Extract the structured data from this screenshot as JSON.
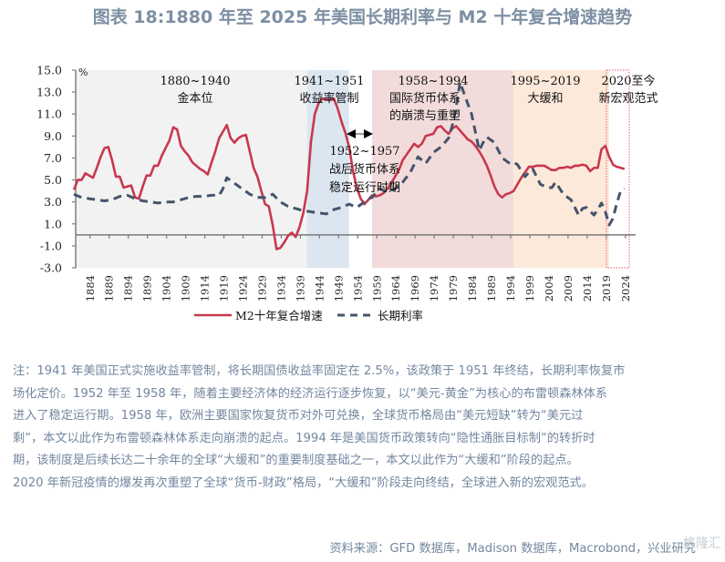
{
  "title": "图表 18:1880 年至 2025 年美国长期利率与 M2 十年复合增速趋势",
  "chart_data": {
    "type": "line",
    "title": "图表 18:1880 年至 2025 年美国长期利率与 M2 十年复合增速趋势",
    "ylabel": "%",
    "ylim": [
      -3.0,
      15.0
    ],
    "yticks": [
      "15.0",
      "13.0",
      "11.0",
      "9.0",
      "7.0",
      "5.0",
      "3.0",
      "1.0",
      "-1.0",
      "-3.0"
    ],
    "ytick_values": [
      15,
      13,
      11,
      9,
      7,
      5,
      3,
      1,
      -1,
      -3
    ],
    "xlim": [
      1880,
      2025
    ],
    "xticks": [
      "1884",
      "1889",
      "1894",
      "1899",
      "1904",
      "1909",
      "1914",
      "1919",
      "1924",
      "1929",
      "1934",
      "1939",
      "1944",
      "1949",
      "1954",
      "1959",
      "1964",
      "1969",
      "1974",
      "1979",
      "1984",
      "1989",
      "1994",
      "1999",
      "2004",
      "2009",
      "2014",
      "2019",
      "2024"
    ],
    "legend_position": "bottom",
    "grid": false,
    "series": [
      {
        "name": "M2十年复合增速",
        "color": "#c8384e",
        "style": "solid",
        "x": [
          1880,
          1881,
          1882,
          1883,
          1884,
          1885,
          1886,
          1887,
          1888,
          1889,
          1890,
          1891,
          1892,
          1893,
          1894,
          1895,
          1896,
          1897,
          1898,
          1899,
          1900,
          1901,
          1902,
          1903,
          1904,
          1905,
          1906,
          1907,
          1908,
          1909,
          1910,
          1911,
          1912,
          1913,
          1914,
          1915,
          1916,
          1917,
          1918,
          1919,
          1920,
          1921,
          1922,
          1923,
          1924,
          1925,
          1926,
          1927,
          1928,
          1929,
          1930,
          1931,
          1932,
          1933,
          1934,
          1935,
          1936,
          1937,
          1938,
          1939,
          1940,
          1941,
          1942,
          1943,
          1944,
          1945,
          1946,
          1947,
          1948,
          1949,
          1950,
          1951,
          1952,
          1953,
          1954,
          1955,
          1956,
          1957,
          1958,
          1959,
          1960,
          1961,
          1962,
          1963,
          1964,
          1965,
          1966,
          1967,
          1968,
          1969,
          1970,
          1971,
          1972,
          1973,
          1974,
          1975,
          1976,
          1977,
          1978,
          1979,
          1980,
          1981,
          1982,
          1983,
          1984,
          1985,
          1986,
          1987,
          1988,
          1989,
          1990,
          1991,
          1992,
          1993,
          1994,
          1995,
          1996,
          1997,
          1998,
          1999,
          2000,
          2001,
          2002,
          2003,
          2004,
          2005,
          2006,
          2007,
          2008,
          2009,
          2010,
          2011,
          2012,
          2013,
          2014,
          2015,
          2016,
          2017,
          2018,
          2019,
          2020,
          2021,
          2022,
          2023,
          2024
        ],
        "values": [
          4.1,
          5.0,
          5.0,
          5.6,
          5.4,
          5.2,
          6.1,
          7.1,
          7.9,
          8.0,
          6.8,
          5.3,
          5.3,
          4.3,
          4.4,
          4.5,
          3.4,
          3.3,
          4.4,
          5.4,
          5.4,
          6.3,
          6.3,
          7.2,
          7.9,
          8.6,
          9.8,
          9.6,
          8.1,
          7.6,
          7.2,
          6.6,
          6.3,
          6.0,
          5.8,
          5.5,
          6.6,
          7.6,
          8.8,
          9.4,
          10.0,
          8.8,
          8.4,
          8.8,
          9.0,
          9.1,
          7.6,
          6.1,
          5.3,
          4.0,
          2.8,
          2.6,
          0.9,
          -1.3,
          -1.2,
          -0.7,
          -0.1,
          0.2,
          -0.2,
          0.7,
          2.0,
          4.0,
          8.5,
          11.0,
          12.0,
          12.4,
          12.3,
          12.3,
          12.4,
          11.5,
          10.3,
          9.3,
          8.0,
          5.8,
          4.3,
          3.3,
          2.8,
          3.2,
          3.6,
          3.5,
          3.6,
          3.8,
          4.2,
          4.7,
          5.3,
          5.9,
          6.8,
          7.3,
          7.8,
          8.3,
          8.0,
          8.3,
          9.0,
          9.1,
          9.2,
          9.8,
          9.9,
          9.5,
          9.2,
          9.7,
          9.9,
          9.5,
          9.1,
          8.7,
          8.5,
          8.1,
          7.6,
          7.0,
          6.3,
          5.4,
          4.4,
          3.7,
          3.4,
          3.7,
          3.8,
          4.0,
          4.6,
          5.2,
          5.7,
          6.2,
          6.2,
          6.3,
          6.3,
          6.3,
          6.1,
          5.9,
          5.9,
          6.1,
          6.1,
          6.2,
          6.1,
          6.3,
          6.3,
          6.4,
          6.3,
          5.8,
          6.1,
          6.1,
          7.8,
          8.1,
          7.1,
          6.4,
          6.2,
          6.1,
          6.0
        ]
      },
      {
        "name": "长期利率",
        "color": "#44546a",
        "style": "dashed",
        "x": [
          1880,
          1882,
          1884,
          1886,
          1888,
          1890,
          1892,
          1894,
          1896,
          1898,
          1900,
          1902,
          1904,
          1906,
          1908,
          1910,
          1912,
          1914,
          1916,
          1918,
          1919,
          1920,
          1922,
          1924,
          1926,
          1928,
          1930,
          1932,
          1934,
          1936,
          1938,
          1940,
          1942,
          1944,
          1946,
          1948,
          1950,
          1952,
          1954,
          1956,
          1957,
          1958,
          1960,
          1962,
          1964,
          1966,
          1968,
          1970,
          1972,
          1974,
          1976,
          1978,
          1979,
          1980,
          1981,
          1982,
          1984,
          1986,
          1987,
          1988,
          1990,
          1992,
          1994,
          1995,
          1996,
          1998,
          1999,
          2000,
          2002,
          2004,
          2005,
          2006,
          2008,
          2010,
          2012,
          2013,
          2014,
          2016,
          2017,
          2018,
          2019,
          2020,
          2021,
          2022,
          2023,
          2024
        ],
        "values": [
          3.7,
          3.4,
          3.3,
          3.2,
          3.1,
          3.2,
          3.5,
          3.6,
          3.3,
          3.1,
          3.0,
          2.9,
          3.0,
          3.0,
          3.2,
          3.4,
          3.5,
          3.5,
          3.6,
          3.6,
          4.2,
          5.2,
          4.7,
          4.2,
          3.7,
          3.4,
          3.4,
          3.7,
          3.0,
          2.6,
          2.4,
          2.2,
          2.1,
          2.0,
          1.9,
          2.3,
          2.5,
          2.8,
          2.5,
          3.0,
          3.3,
          3.4,
          4.2,
          3.9,
          4.2,
          4.8,
          5.7,
          7.1,
          6.5,
          7.5,
          8.0,
          8.8,
          10.0,
          11.7,
          13.9,
          12.9,
          11.0,
          7.7,
          8.4,
          8.9,
          8.4,
          7.0,
          6.5,
          6.6,
          6.4,
          5.3,
          5.7,
          6.0,
          4.6,
          4.3,
          4.3,
          4.8,
          3.7,
          3.2,
          1.8,
          2.4,
          2.5,
          1.8,
          2.3,
          2.9,
          2.1,
          0.9,
          1.5,
          2.9,
          4.0,
          4.2
        ]
      }
    ],
    "periods": [
      {
        "start": 1880,
        "end": 1940,
        "label1": "1880~1940",
        "label2": "金本位",
        "color": "#f2f2f2"
      },
      {
        "start": 1941,
        "end": 1951,
        "label1": "1941~1951",
        "label2": "收益率管制",
        "color": "#dce6f1"
      },
      {
        "start": 1952,
        "end": 1957,
        "label1": "1952~1957",
        "label2": "战后货币体系",
        "label3": "稳定运行时期",
        "color": "#ffffff"
      },
      {
        "start": 1958,
        "end": 1994,
        "label1": "1958~1994",
        "label2": "国际货币体系",
        "label3": "的崩溃与重塑",
        "color": "#f2dcdb"
      },
      {
        "start": 1995,
        "end": 2019,
        "label1": "1995~2019",
        "label2": "大缓和",
        "color": "#fde9d9"
      },
      {
        "start": 2020,
        "end": 2025,
        "label1": "2020至今",
        "label2": "新宏观范式",
        "color": "#ffffff"
      }
    ]
  },
  "note": {
    "lines": [
      "注：1941 年美国正式实施收益率管制，将长期国债收益率固定在 2.5%，该政策于 1951 年终结，长期利率恢复市",
      "场化定价。1952 年至 1958 年，随着主要经济体的经济运行逐步恢复，以“美元-黄金”为核心的布雷顿森林体系",
      "进入了稳定运行期。1958 年，欧洲主要国家恢复货币对外可兑换，全球货币格局由“美元短缺”转为“美元过",
      "剩”，本文以此作为布雷顿森林体系走向崩溃的起点。1994 年是美国货币政策转向“隐性通胀目标制”的转折时",
      "期，该制度是后续长达二十余年的全球“大缓和”的重要制度基础之一，本文以此作为“大缓和”阶段的起点。",
      "2020 年新冠疫情的爆发再次重塑了全球“货币-财政”格局，“大缓和”阶段走向终结，全球进入新的宏观范式。"
    ]
  },
  "source": "资料来源：GFD 数据库，Madison 数据库，Macrobond，兴业研究",
  "watermark": "格隆汇"
}
